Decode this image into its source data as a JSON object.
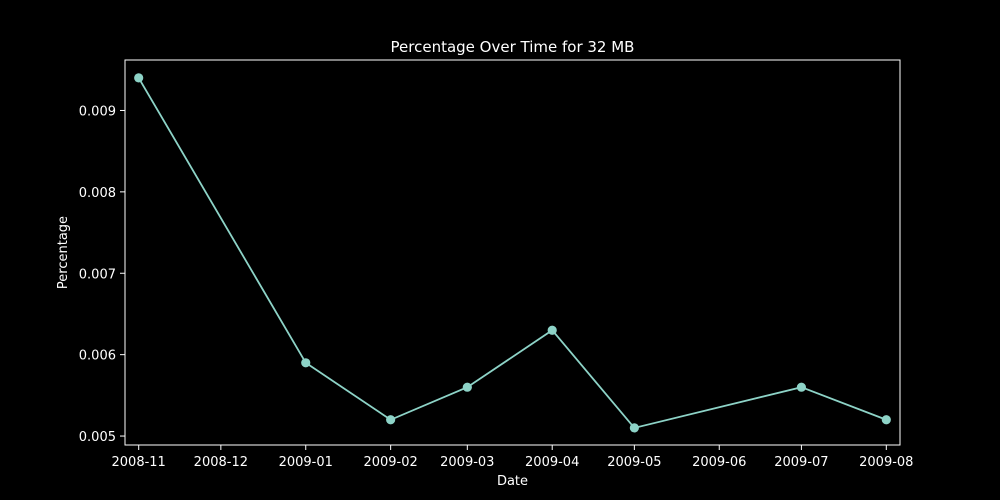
{
  "chart_data": {
    "type": "line",
    "title": "Percentage Over Time for 32 MB",
    "xlabel": "Date",
    "ylabel": "Percentage",
    "x_ticks": [
      "2008-11",
      "2008-12",
      "2009-01",
      "2009-02",
      "2009-03",
      "2009-04",
      "2009-05",
      "2009-06",
      "2009-07",
      "2009-08"
    ],
    "y_ticks": [
      "0.005",
      "0.006",
      "0.007",
      "0.008",
      "0.009"
    ],
    "xlim": [
      "2008-10-27",
      "2009-08-06"
    ],
    "ylim": [
      0.00489,
      0.00962
    ],
    "grid": false,
    "series": [
      {
        "x": [
          "2008-11-01",
          "2009-01-01",
          "2009-02-01",
          "2009-03-01",
          "2009-04-01",
          "2009-05-01",
          "2009-07-01",
          "2009-08-01"
        ],
        "y": [
          0.0094,
          0.0059,
          0.0052,
          0.0056,
          0.0063,
          0.0051,
          0.0056,
          0.0052
        ]
      }
    ],
    "colors": {
      "background": "#000000",
      "axes": "#ffffff",
      "line": "#8dd3c7",
      "text": "#ffffff"
    }
  }
}
